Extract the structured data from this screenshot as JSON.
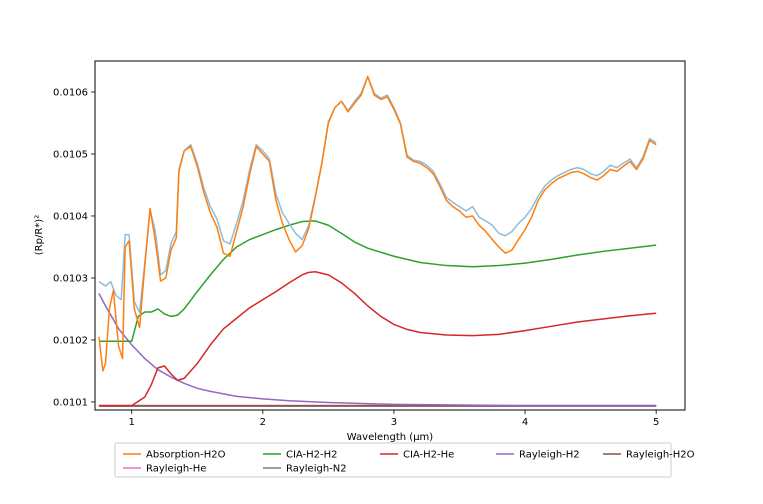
{
  "chart_data": {
    "type": "line",
    "title": "",
    "xlabel": "Wavelength (μm)",
    "ylabel": "(Rp/R*)²",
    "xlim": [
      0.72,
      5.22
    ],
    "ylim": [
      0.010087,
      0.01065
    ],
    "x_ticks": [
      1,
      2,
      3,
      4,
      5
    ],
    "x_tick_labels": [
      "1",
      "2",
      "3",
      "4",
      "5"
    ],
    "y_ticks": [
      0.0101,
      0.0102,
      0.0103,
      0.0104,
      0.0105,
      0.0106
    ],
    "y_tick_labels": [
      "0.0101",
      "0.0102",
      "0.0103",
      "0.0104",
      "0.0105",
      "0.0106"
    ],
    "grid": false,
    "legend_position": "bottom-center",
    "series": [
      {
        "name": "",
        "color": "#8fbcdb",
        "points": [
          [
            0.75,
            0.010294
          ],
          [
            0.8,
            0.010287
          ],
          [
            0.84,
            0.010294
          ],
          [
            0.88,
            0.010272
          ],
          [
            0.92,
            0.010265
          ],
          [
            0.95,
            0.01037
          ],
          [
            0.98,
            0.01037
          ],
          [
            1.02,
            0.010262
          ],
          [
            1.06,
            0.010244
          ],
          [
            1.1,
            0.010325
          ],
          [
            1.14,
            0.01041
          ],
          [
            1.18,
            0.010375
          ],
          [
            1.22,
            0.010305
          ],
          [
            1.26,
            0.010312
          ],
          [
            1.3,
            0.010356
          ],
          [
            1.34,
            0.010375
          ],
          [
            1.36,
            0.010475
          ],
          [
            1.4,
            0.010505
          ],
          [
            1.45,
            0.010515
          ],
          [
            1.5,
            0.010485
          ],
          [
            1.55,
            0.010445
          ],
          [
            1.6,
            0.010415
          ],
          [
            1.65,
            0.010395
          ],
          [
            1.7,
            0.01036
          ],
          [
            1.75,
            0.010355
          ],
          [
            1.8,
            0.010388
          ],
          [
            1.85,
            0.010425
          ],
          [
            1.9,
            0.010475
          ],
          [
            1.95,
            0.010515
          ],
          [
            2.0,
            0.010505
          ],
          [
            2.05,
            0.010492
          ],
          [
            2.1,
            0.010435
          ],
          [
            2.15,
            0.010405
          ],
          [
            2.2,
            0.010388
          ],
          [
            2.25,
            0.010372
          ],
          [
            2.3,
            0.010362
          ],
          [
            2.35,
            0.010385
          ],
          [
            2.4,
            0.010432
          ],
          [
            2.45,
            0.010485
          ],
          [
            2.5,
            0.010552
          ],
          [
            2.55,
            0.010575
          ],
          [
            2.6,
            0.010585
          ],
          [
            2.65,
            0.01057
          ],
          [
            2.7,
            0.010585
          ],
          [
            2.75,
            0.010598
          ],
          [
            2.8,
            0.010625
          ],
          [
            2.85,
            0.010598
          ],
          [
            2.9,
            0.01059
          ],
          [
            2.95,
            0.010595
          ],
          [
            3.0,
            0.010575
          ],
          [
            3.05,
            0.01055
          ],
          [
            3.1,
            0.010498
          ],
          [
            3.15,
            0.01049
          ],
          [
            3.2,
            0.010488
          ],
          [
            3.25,
            0.010482
          ],
          [
            3.3,
            0.010472
          ],
          [
            3.35,
            0.010452
          ],
          [
            3.4,
            0.01043
          ],
          [
            3.45,
            0.010422
          ],
          [
            3.5,
            0.010415
          ],
          [
            3.55,
            0.010408
          ],
          [
            3.6,
            0.010415
          ],
          [
            3.65,
            0.010398
          ],
          [
            3.7,
            0.010392
          ],
          [
            3.75,
            0.010385
          ],
          [
            3.8,
            0.010372
          ],
          [
            3.85,
            0.010368
          ],
          [
            3.9,
            0.010375
          ],
          [
            3.95,
            0.010388
          ],
          [
            4.0,
            0.010398
          ],
          [
            4.05,
            0.010412
          ],
          [
            4.1,
            0.010432
          ],
          [
            4.15,
            0.010448
          ],
          [
            4.2,
            0.010458
          ],
          [
            4.25,
            0.010465
          ],
          [
            4.3,
            0.01047
          ],
          [
            4.35,
            0.010475
          ],
          [
            4.4,
            0.010478
          ],
          [
            4.45,
            0.010475
          ],
          [
            4.5,
            0.010468
          ],
          [
            4.55,
            0.010465
          ],
          [
            4.6,
            0.010472
          ],
          [
            4.65,
            0.010482
          ],
          [
            4.7,
            0.010478
          ],
          [
            4.75,
            0.010485
          ],
          [
            4.8,
            0.010492
          ],
          [
            4.85,
            0.010478
          ],
          [
            4.9,
            0.010495
          ],
          [
            4.95,
            0.010525
          ],
          [
            5.0,
            0.010518
          ]
        ]
      },
      {
        "name": "Absorption-H2O",
        "color": "#ff7f0e",
        "points": [
          [
            0.75,
            0.010205
          ],
          [
            0.78,
            0.01015
          ],
          [
            0.8,
            0.010162
          ],
          [
            0.83,
            0.01025
          ],
          [
            0.86,
            0.01028
          ],
          [
            0.9,
            0.01019
          ],
          [
            0.93,
            0.01017
          ],
          [
            0.95,
            0.01035
          ],
          [
            0.98,
            0.01036
          ],
          [
            1.02,
            0.01025
          ],
          [
            1.06,
            0.01022
          ],
          [
            1.1,
            0.01032
          ],
          [
            1.14,
            0.010412
          ],
          [
            1.18,
            0.01036
          ],
          [
            1.22,
            0.010295
          ],
          [
            1.26,
            0.0103
          ],
          [
            1.3,
            0.010345
          ],
          [
            1.34,
            0.010365
          ],
          [
            1.36,
            0.010472
          ],
          [
            1.4,
            0.010505
          ],
          [
            1.45,
            0.010512
          ],
          [
            1.5,
            0.01048
          ],
          [
            1.55,
            0.010438
          ],
          [
            1.6,
            0.010405
          ],
          [
            1.65,
            0.010382
          ],
          [
            1.7,
            0.01034
          ],
          [
            1.75,
            0.010335
          ],
          [
            1.8,
            0.010375
          ],
          [
            1.85,
            0.010415
          ],
          [
            1.9,
            0.010468
          ],
          [
            1.95,
            0.010512
          ],
          [
            2.0,
            0.0105
          ],
          [
            2.05,
            0.010488
          ],
          [
            2.1,
            0.010425
          ],
          [
            2.15,
            0.010388
          ],
          [
            2.2,
            0.010362
          ],
          [
            2.25,
            0.010342
          ],
          [
            2.3,
            0.010352
          ],
          [
            2.35,
            0.01038
          ],
          [
            2.4,
            0.01043
          ],
          [
            2.45,
            0.010485
          ],
          [
            2.5,
            0.01055
          ],
          [
            2.55,
            0.010575
          ],
          [
            2.6,
            0.010585
          ],
          [
            2.65,
            0.010568
          ],
          [
            2.7,
            0.010582
          ],
          [
            2.75,
            0.010595
          ],
          [
            2.8,
            0.010625
          ],
          [
            2.85,
            0.010595
          ],
          [
            2.9,
            0.010588
          ],
          [
            2.95,
            0.010592
          ],
          [
            3.0,
            0.010572
          ],
          [
            3.05,
            0.010548
          ],
          [
            3.1,
            0.010495
          ],
          [
            3.15,
            0.010488
          ],
          [
            3.2,
            0.010485
          ],
          [
            3.25,
            0.010478
          ],
          [
            3.3,
            0.010468
          ],
          [
            3.35,
            0.010448
          ],
          [
            3.4,
            0.010425
          ],
          [
            3.45,
            0.010415
          ],
          [
            3.5,
            0.010408
          ],
          [
            3.55,
            0.010398
          ],
          [
            3.6,
            0.0104
          ],
          [
            3.65,
            0.010385
          ],
          [
            3.7,
            0.010375
          ],
          [
            3.75,
            0.010362
          ],
          [
            3.8,
            0.01035
          ],
          [
            3.85,
            0.01034
          ],
          [
            3.9,
            0.010345
          ],
          [
            3.95,
            0.010362
          ],
          [
            4.0,
            0.010378
          ],
          [
            4.05,
            0.010398
          ],
          [
            4.1,
            0.010425
          ],
          [
            4.15,
            0.010442
          ],
          [
            4.2,
            0.010452
          ],
          [
            4.25,
            0.01046
          ],
          [
            4.3,
            0.010465
          ],
          [
            4.35,
            0.01047
          ],
          [
            4.4,
            0.010472
          ],
          [
            4.45,
            0.010468
          ],
          [
            4.5,
            0.010462
          ],
          [
            4.55,
            0.010458
          ],
          [
            4.6,
            0.010465
          ],
          [
            4.65,
            0.010475
          ],
          [
            4.7,
            0.010472
          ],
          [
            4.75,
            0.01048
          ],
          [
            4.8,
            0.010488
          ],
          [
            4.85,
            0.010475
          ],
          [
            4.9,
            0.010492
          ],
          [
            4.95,
            0.010522
          ],
          [
            5.0,
            0.010515
          ]
        ]
      },
      {
        "name": "CIA-H2-H2",
        "color": "#2ca02c",
        "points": [
          [
            0.75,
            0.010198
          ],
          [
            0.8,
            0.010198
          ],
          [
            0.9,
            0.010198
          ],
          [
            1.0,
            0.010198
          ],
          [
            1.05,
            0.010238
          ],
          [
            1.1,
            0.010245
          ],
          [
            1.15,
            0.010245
          ],
          [
            1.2,
            0.01025
          ],
          [
            1.25,
            0.010242
          ],
          [
            1.3,
            0.010238
          ],
          [
            1.35,
            0.01024
          ],
          [
            1.4,
            0.01025
          ],
          [
            1.5,
            0.010278
          ],
          [
            1.6,
            0.010305
          ],
          [
            1.7,
            0.01033
          ],
          [
            1.8,
            0.01035
          ],
          [
            1.9,
            0.010362
          ],
          [
            2.0,
            0.01037
          ],
          [
            2.1,
            0.010378
          ],
          [
            2.2,
            0.010385
          ],
          [
            2.3,
            0.010391
          ],
          [
            2.4,
            0.010392
          ],
          [
            2.5,
            0.010385
          ],
          [
            2.6,
            0.010372
          ],
          [
            2.7,
            0.010358
          ],
          [
            2.8,
            0.010348
          ],
          [
            3.0,
            0.010335
          ],
          [
            3.2,
            0.010325
          ],
          [
            3.4,
            0.01032
          ],
          [
            3.6,
            0.010318
          ],
          [
            3.8,
            0.01032
          ],
          [
            4.0,
            0.010324
          ],
          [
            4.2,
            0.01033
          ],
          [
            4.4,
            0.010337
          ],
          [
            4.6,
            0.010343
          ],
          [
            4.8,
            0.010348
          ],
          [
            5.0,
            0.010353
          ]
        ]
      },
      {
        "name": "CIA-H2-He",
        "color": "#d62728",
        "points": [
          [
            0.75,
            0.010094
          ],
          [
            0.9,
            0.010094
          ],
          [
            1.0,
            0.010094
          ],
          [
            1.1,
            0.010108
          ],
          [
            1.15,
            0.010128
          ],
          [
            1.2,
            0.010155
          ],
          [
            1.25,
            0.010158
          ],
          [
            1.3,
            0.010145
          ],
          [
            1.35,
            0.010135
          ],
          [
            1.4,
            0.010138
          ],
          [
            1.5,
            0.010162
          ],
          [
            1.6,
            0.010192
          ],
          [
            1.7,
            0.010218
          ],
          [
            1.8,
            0.010235
          ],
          [
            1.9,
            0.010252
          ],
          [
            2.0,
            0.010265
          ],
          [
            2.1,
            0.010278
          ],
          [
            2.2,
            0.010292
          ],
          [
            2.3,
            0.010305
          ],
          [
            2.35,
            0.010309
          ],
          [
            2.4,
            0.01031
          ],
          [
            2.5,
            0.010305
          ],
          [
            2.6,
            0.010292
          ],
          [
            2.7,
            0.010275
          ],
          [
            2.8,
            0.010255
          ],
          [
            2.9,
            0.010238
          ],
          [
            3.0,
            0.010225
          ],
          [
            3.1,
            0.010217
          ],
          [
            3.2,
            0.010212
          ],
          [
            3.4,
            0.010208
          ],
          [
            3.6,
            0.010207
          ],
          [
            3.8,
            0.010209
          ],
          [
            4.0,
            0.010215
          ],
          [
            4.2,
            0.010222
          ],
          [
            4.4,
            0.010229
          ],
          [
            4.6,
            0.010234
          ],
          [
            4.8,
            0.010239
          ],
          [
            5.0,
            0.010243
          ]
        ]
      },
      {
        "name": "Rayleigh-H2",
        "color": "#9467bd",
        "points": [
          [
            0.75,
            0.010275
          ],
          [
            0.8,
            0.010255
          ],
          [
            0.9,
            0.010218
          ],
          [
            1.0,
            0.010192
          ],
          [
            1.1,
            0.01017
          ],
          [
            1.2,
            0.010152
          ],
          [
            1.3,
            0.01014
          ],
          [
            1.4,
            0.01013
          ],
          [
            1.5,
            0.010122
          ],
          [
            1.6,
            0.010117
          ],
          [
            1.8,
            0.010109
          ],
          [
            2.0,
            0.010105
          ],
          [
            2.2,
            0.010102
          ],
          [
            2.5,
            0.010099
          ],
          [
            3.0,
            0.010096
          ],
          [
            3.5,
            0.010095
          ],
          [
            4.0,
            0.010094
          ],
          [
            4.5,
            0.010094
          ],
          [
            5.0,
            0.010094
          ]
        ]
      },
      {
        "name": "Rayleigh-H2O",
        "color": "#8c564b",
        "points": [
          [
            0.75,
            0.010094
          ],
          [
            5.0,
            0.010094
          ]
        ]
      },
      {
        "name": "Rayleigh-He",
        "color": "#e377c2",
        "points": [
          [
            0.75,
            0.010094
          ],
          [
            5.0,
            0.010094
          ]
        ]
      },
      {
        "name": "Rayleigh-N2",
        "color": "#7f7f7f",
        "points": [
          [
            0.75,
            0.010093
          ],
          [
            5.0,
            0.010093
          ]
        ]
      }
    ]
  }
}
